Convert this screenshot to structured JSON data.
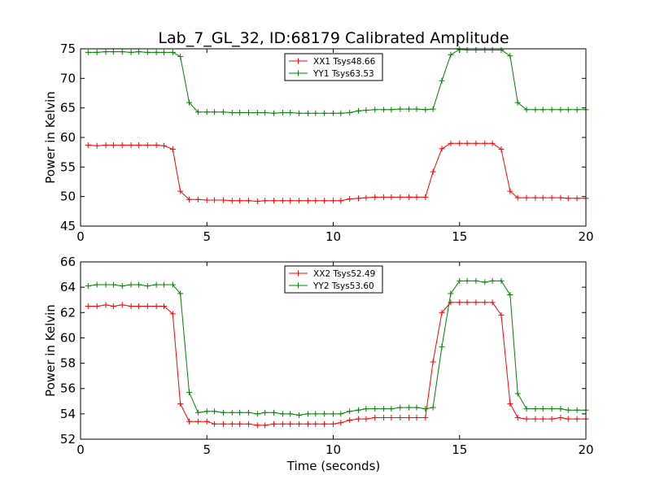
{
  "figure": {
    "title": "Lab_7_GL_32, ID:68179 Calibrated Amplitude",
    "xlabel": "Time (seconds)"
  },
  "colors": {
    "red": "#ff0000",
    "green": "#008000"
  },
  "chart_data": [
    {
      "type": "line",
      "title": "Lab_7_GL_32, ID:68179 Calibrated Amplitude",
      "xlabel": "",
      "ylabel": "Power in Kelvin",
      "xlim": [
        0,
        20
      ],
      "ylim": [
        45,
        75
      ],
      "xticks": [
        "0",
        "5",
        "10",
        "15",
        "20"
      ],
      "yticks": [
        "45",
        "50",
        "55",
        "60",
        "65",
        "70",
        "75"
      ],
      "grid": false,
      "legend_position": "top-center",
      "x": [
        0.3,
        0.65,
        1.0,
        1.3,
        1.65,
        2.0,
        2.3,
        2.65,
        3.0,
        3.3,
        3.65,
        3.95,
        4.3,
        4.65,
        5.0,
        5.3,
        5.65,
        6.0,
        6.3,
        6.65,
        7.0,
        7.3,
        7.65,
        8.0,
        8.3,
        8.65,
        9.0,
        9.3,
        9.65,
        10.0,
        10.3,
        10.65,
        11.0,
        11.3,
        11.65,
        12.0,
        12.3,
        12.65,
        13.0,
        13.3,
        13.65,
        13.95,
        14.3,
        14.65,
        15.0,
        15.3,
        15.65,
        16.0,
        16.3,
        16.65,
        17.0,
        17.3,
        17.65,
        18.0,
        18.3,
        18.65,
        19.0,
        19.3,
        19.65,
        20.0
      ],
      "series": [
        {
          "name": "XX1 Tsys48.66",
          "color": "#ff0000",
          "values": [
            58.7,
            58.6,
            58.7,
            58.7,
            58.7,
            58.7,
            58.7,
            58.7,
            58.7,
            58.6,
            58.0,
            50.9,
            49.5,
            49.5,
            49.4,
            49.4,
            49.4,
            49.3,
            49.3,
            49.3,
            49.2,
            49.3,
            49.3,
            49.3,
            49.3,
            49.3,
            49.3,
            49.3,
            49.3,
            49.3,
            49.3,
            49.6,
            49.7,
            49.8,
            49.9,
            49.9,
            49.9,
            49.9,
            49.9,
            49.9,
            49.9,
            54.2,
            58.1,
            59.0,
            59.0,
            59.0,
            59.0,
            59.0,
            59.0,
            58.0,
            50.9,
            49.8,
            49.8,
            49.8,
            49.8,
            49.8,
            49.8,
            49.7,
            49.7,
            49.7
          ]
        },
        {
          "name": "YY1 Tsys63.53",
          "color": "#008000",
          "values": [
            74.4,
            74.4,
            74.5,
            74.5,
            74.5,
            74.4,
            74.5,
            74.4,
            74.4,
            74.4,
            74.4,
            73.7,
            65.9,
            64.3,
            64.3,
            64.3,
            64.3,
            64.2,
            64.2,
            64.2,
            64.2,
            64.2,
            64.1,
            64.2,
            64.2,
            64.1,
            64.1,
            64.1,
            64.1,
            64.1,
            64.1,
            64.2,
            64.5,
            64.6,
            64.7,
            64.7,
            64.7,
            64.8,
            64.8,
            64.8,
            64.7,
            64.8,
            69.6,
            74.0,
            74.9,
            74.8,
            74.8,
            74.8,
            74.8,
            74.8,
            73.8,
            65.9,
            64.7,
            64.7,
            64.7,
            64.7,
            64.7,
            64.7,
            64.7,
            64.7
          ]
        }
      ]
    },
    {
      "type": "line",
      "title": "",
      "xlabel": "Time (seconds)",
      "ylabel": "Power in Kelvin",
      "xlim": [
        0,
        20
      ],
      "ylim": [
        52,
        66
      ],
      "xticks": [
        "0",
        "5",
        "10",
        "15",
        "20"
      ],
      "yticks": [
        "52",
        "54",
        "56",
        "58",
        "60",
        "62",
        "64",
        "66"
      ],
      "grid": false,
      "legend_position": "top-center",
      "x": [
        0.3,
        0.65,
        1.0,
        1.3,
        1.65,
        2.0,
        2.3,
        2.65,
        3.0,
        3.3,
        3.65,
        3.95,
        4.3,
        4.65,
        5.0,
        5.3,
        5.65,
        6.0,
        6.3,
        6.65,
        7.0,
        7.3,
        7.65,
        8.0,
        8.3,
        8.65,
        9.0,
        9.3,
        9.65,
        10.0,
        10.3,
        10.65,
        11.0,
        11.3,
        11.65,
        12.0,
        12.3,
        12.65,
        13.0,
        13.3,
        13.65,
        13.95,
        14.3,
        14.65,
        15.0,
        15.3,
        15.65,
        16.0,
        16.3,
        16.65,
        17.0,
        17.3,
        17.65,
        18.0,
        18.3,
        18.65,
        19.0,
        19.3,
        19.65,
        20.0
      ],
      "series": [
        {
          "name": "XX2 Tsys52.49",
          "color": "#ff0000",
          "values": [
            62.5,
            62.5,
            62.6,
            62.5,
            62.6,
            62.5,
            62.5,
            62.5,
            62.5,
            62.5,
            61.9,
            54.8,
            53.4,
            53.4,
            53.4,
            53.2,
            53.2,
            53.2,
            53.2,
            53.2,
            53.1,
            53.1,
            53.2,
            53.2,
            53.2,
            53.2,
            53.2,
            53.2,
            53.2,
            53.2,
            53.3,
            53.5,
            53.6,
            53.6,
            53.7,
            53.7,
            53.7,
            53.7,
            53.7,
            53.7,
            53.7,
            58.1,
            62.0,
            62.8,
            62.8,
            62.8,
            62.8,
            62.8,
            62.8,
            61.8,
            54.8,
            53.7,
            53.6,
            53.6,
            53.6,
            53.6,
            53.7,
            53.6,
            53.6,
            53.6
          ]
        },
        {
          "name": "YY2 Tsys53.60",
          "color": "#008000",
          "values": [
            64.1,
            64.2,
            64.2,
            64.2,
            64.1,
            64.2,
            64.2,
            64.1,
            64.2,
            64.2,
            64.2,
            63.5,
            55.7,
            54.1,
            54.2,
            54.2,
            54.1,
            54.1,
            54.1,
            54.1,
            54.0,
            54.1,
            54.1,
            54.0,
            54.0,
            53.9,
            54.0,
            54.0,
            54.0,
            54.0,
            54.0,
            54.2,
            54.3,
            54.4,
            54.4,
            54.4,
            54.4,
            54.5,
            54.5,
            54.5,
            54.4,
            54.5,
            59.3,
            63.5,
            64.5,
            64.5,
            64.5,
            64.4,
            64.5,
            64.5,
            63.4,
            55.6,
            54.4,
            54.4,
            54.4,
            54.4,
            54.4,
            54.3,
            54.3,
            54.3
          ]
        }
      ]
    }
  ]
}
